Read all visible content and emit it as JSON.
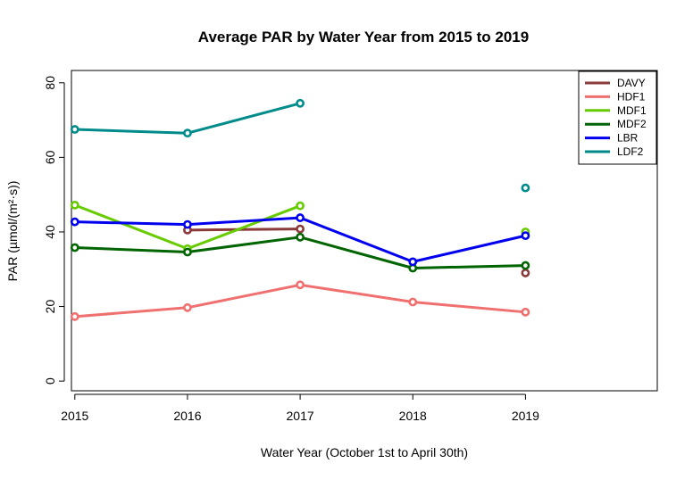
{
  "chart_data": {
    "type": "line",
    "title": "Average PAR by Water Year from 2015 to 2019",
    "xlabel": "Water Year (October 1st to April 30th)",
    "ylabel": "PAR (µmol/(m²·s))",
    "x": [
      2015,
      2016,
      2017,
      2018,
      2019
    ],
    "xticks": [
      "2015",
      "2016",
      "2017",
      "2018",
      "2019"
    ],
    "yticks": [
      "0",
      "20",
      "40",
      "60",
      "80"
    ],
    "xlim": [
      2014.97,
      2020.17
    ],
    "ylim": [
      -2.6,
      83.3
    ],
    "grid": false,
    "legend_position": "top-right",
    "series": [
      {
        "name": "DAVY",
        "color": "#8B3A3A",
        "values": [
          null,
          40.5,
          40.8,
          null,
          29.0
        ]
      },
      {
        "name": "HDF1",
        "color": "#F07070",
        "values": [
          17.3,
          19.7,
          25.8,
          21.2,
          18.5
        ]
      },
      {
        "name": "MDF1",
        "color": "#66CC00",
        "values": [
          47.2,
          35.5,
          47.0,
          null,
          40.0
        ]
      },
      {
        "name": "MDF2",
        "color": "#006400",
        "values": [
          35.8,
          34.6,
          38.6,
          30.3,
          31.0
        ]
      },
      {
        "name": "LBR",
        "color": "#0000EE",
        "values": [
          42.7,
          42.0,
          43.8,
          32.0,
          39.0
        ]
      },
      {
        "name": "LDF2",
        "color": "#008B8B",
        "values": [
          67.5,
          66.5,
          74.5,
          null,
          51.8
        ]
      }
    ]
  }
}
